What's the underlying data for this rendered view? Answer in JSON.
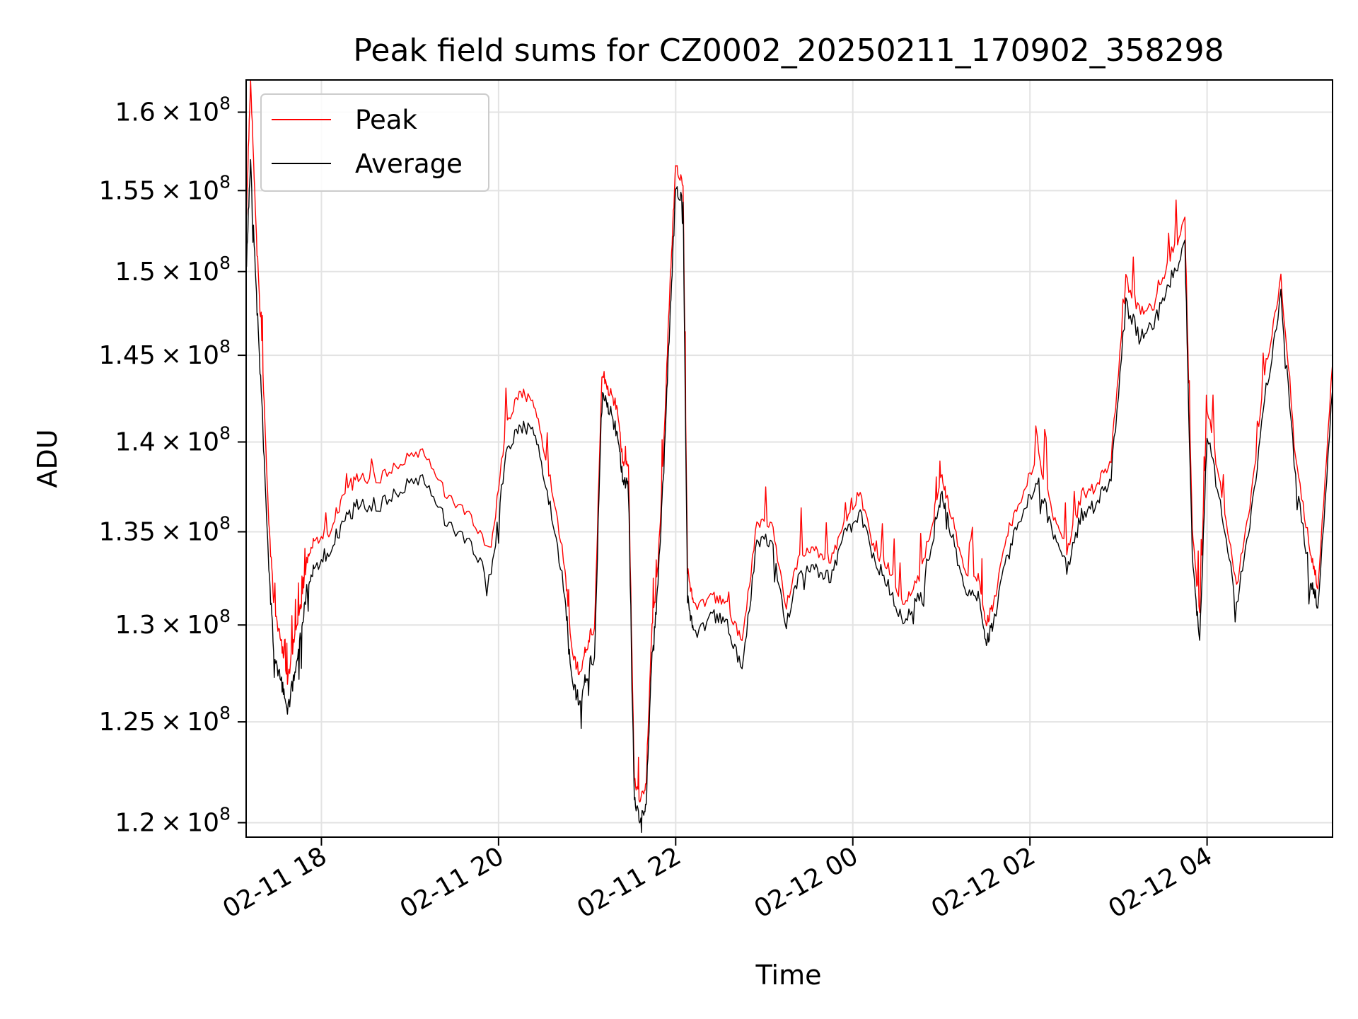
{
  "chart_data": {
    "type": "line",
    "title": "Peak field sums for CZ0002_20250211_170902_358298",
    "xlabel": "Time",
    "ylabel": "ADU",
    "yscale": "log",
    "xlim": [
      "2025-02-11 17:09",
      "2025-02-12 05:25"
    ],
    "ylim": [
      119300000,
      162100000
    ],
    "grid": true,
    "legend_position": "top-left",
    "x_ticks": [
      {
        "value": "2025-02-11 18:00",
        "label": "02-11 18"
      },
      {
        "value": "2025-02-11 20:00",
        "label": "02-11 20"
      },
      {
        "value": "2025-02-11 22:00",
        "label": "02-11 22"
      },
      {
        "value": "2025-02-12 00:00",
        "label": "02-12 00"
      },
      {
        "value": "2025-02-12 02:00",
        "label": "02-12 02"
      },
      {
        "value": "2025-02-12 04:00",
        "label": "02-12 04"
      }
    ],
    "y_ticks": [
      {
        "value": 120000000,
        "mantissa": "1.2",
        "exponent": "8"
      },
      {
        "value": 125000000,
        "mantissa": "1.25",
        "exponent": "8"
      },
      {
        "value": 130000000,
        "mantissa": "1.3",
        "exponent": "8"
      },
      {
        "value": 135000000,
        "mantissa": "1.35",
        "exponent": "8"
      },
      {
        "value": 140000000,
        "mantissa": "1.4",
        "exponent": "8"
      },
      {
        "value": 145000000,
        "mantissa": "1.45",
        "exponent": "8"
      },
      {
        "value": 150000000,
        "mantissa": "1.5",
        "exponent": "8"
      },
      {
        "value": 155000000,
        "mantissa": "1.55",
        "exponent": "8"
      },
      {
        "value": 160000000,
        "mantissa": "1.6",
        "exponent": "8"
      }
    ],
    "series": [
      {
        "name": "Peak",
        "color": "#ff0000",
        "role": "upper"
      },
      {
        "name": "Average",
        "color": "#000000",
        "role": "lower"
      }
    ],
    "x": [
      "2025-02-11 17:09",
      "2025-02-11 17:12",
      "2025-02-11 17:16",
      "2025-02-11 17:20",
      "2025-02-11 17:24",
      "2025-02-11 17:28",
      "2025-02-11 17:33",
      "2025-02-11 17:37",
      "2025-02-11 17:42",
      "2025-02-11 17:46",
      "2025-02-11 17:50",
      "2025-02-11 17:55",
      "2025-02-11 18:05",
      "2025-02-11 18:15",
      "2025-02-11 18:25",
      "2025-02-11 18:40",
      "2025-02-11 18:55",
      "2025-02-11 19:10",
      "2025-02-11 19:25",
      "2025-02-11 19:40",
      "2025-02-11 19:55",
      "2025-02-11 20:05",
      "2025-02-11 20:15",
      "2025-02-11 20:25",
      "2025-02-11 20:35",
      "2025-02-11 20:45",
      "2025-02-11 20:50",
      "2025-02-11 20:55",
      "2025-02-11 21:00",
      "2025-02-11 21:05",
      "2025-02-11 21:10",
      "2025-02-11 21:15",
      "2025-02-11 21:20",
      "2025-02-11 21:24",
      "2025-02-11 21:28",
      "2025-02-11 21:32",
      "2025-02-11 21:36",
      "2025-02-11 21:40",
      "2025-02-11 21:44",
      "2025-02-11 21:48",
      "2025-02-11 21:52",
      "2025-02-11 21:56",
      "2025-02-11 22:00",
      "2025-02-11 22:05",
      "2025-02-11 22:08",
      "2025-02-11 22:12",
      "2025-02-11 22:25",
      "2025-02-11 22:35",
      "2025-02-11 22:45",
      "2025-02-11 22:55",
      "2025-02-11 23:05",
      "2025-02-11 23:15",
      "2025-02-11 23:25",
      "2025-02-11 23:35",
      "2025-02-11 23:45",
      "2025-02-11 23:55",
      "2025-02-12 00:05",
      "2025-02-12 00:15",
      "2025-02-12 00:25",
      "2025-02-12 00:35",
      "2025-02-12 00:45",
      "2025-02-12 00:55",
      "2025-02-12 01:00",
      "2025-02-12 01:05",
      "2025-02-12 01:15",
      "2025-02-12 01:25",
      "2025-02-12 01:30",
      "2025-02-12 01:35",
      "2025-02-12 01:45",
      "2025-02-12 01:55",
      "2025-02-12 02:05",
      "2025-02-12 02:15",
      "2025-02-12 02:25",
      "2025-02-12 02:35",
      "2025-02-12 02:45",
      "2025-02-12 02:55",
      "2025-02-12 03:05",
      "2025-02-12 03:15",
      "2025-02-12 03:25",
      "2025-02-12 03:35",
      "2025-02-12 03:45",
      "2025-02-12 03:50",
      "2025-02-12 03:55",
      "2025-02-12 04:00",
      "2025-02-12 04:10",
      "2025-02-12 04:20",
      "2025-02-12 04:30",
      "2025-02-12 04:40",
      "2025-02-12 04:50",
      "2025-02-12 05:00",
      "2025-02-12 05:10",
      "2025-02-12 05:15",
      "2025-02-12 05:25"
    ],
    "peak": [
      153000000,
      162100000,
      152000000,
      145000000,
      136000000,
      131000000,
      129000000,
      127000000,
      129500000,
      131000000,
      133500000,
      134500000,
      135000000,
      137000000,
      138000000,
      138000000,
      139000000,
      139500000,
      137000000,
      136000000,
      134000000,
      141000000,
      143000000,
      142000000,
      138000000,
      133000000,
      128500000,
      127500000,
      129000000,
      130000000,
      143500000,
      143000000,
      142000000,
      139000000,
      138500000,
      122000000,
      121000000,
      122000000,
      130000000,
      133000000,
      140000000,
      149000000,
      156500000,
      155500000,
      133000000,
      131000000,
      131500000,
      131000000,
      129000000,
      135500000,
      135500000,
      131000000,
      134000000,
      134000000,
      133500000,
      135500000,
      137000000,
      134000000,
      133000000,
      131000000,
      132500000,
      136000000,
      138000000,
      136500000,
      133000000,
      132500000,
      130000000,
      131000000,
      135000000,
      137000000,
      139500000,
      136000000,
      134000000,
      137000000,
      137500000,
      139000000,
      149500000,
      147500000,
      148000000,
      151000000,
      153000000,
      135000000,
      130500000,
      142000000,
      137000000,
      132000000,
      137000000,
      144500000,
      149500000,
      139000000,
      134000000,
      132000000,
      144500000
    ],
    "average": [
      150000000,
      157000000,
      148500000,
      141500000,
      133500000,
      128500000,
      127000000,
      125500000,
      127500000,
      129500000,
      132000000,
      133000000,
      134000000,
      135500000,
      136500000,
      136500000,
      137500000,
      138000000,
      135500000,
      134500000,
      132500000,
      139500000,
      141000000,
      140500000,
      136500000,
      131500000,
      127000000,
      126000000,
      127500000,
      128500000,
      142500000,
      142000000,
      140500000,
      138000000,
      137500000,
      121000000,
      120000000,
      121000000,
      128500000,
      132000000,
      139000000,
      147000000,
      155000000,
      154500000,
      131500000,
      129500000,
      130500000,
      130000000,
      127500000,
      134500000,
      134500000,
      130000000,
      133000000,
      133000000,
      132500000,
      135000000,
      136000000,
      133500000,
      132000000,
      130000000,
      131500000,
      135000000,
      137000000,
      135500000,
      132000000,
      131500000,
      129000000,
      130000000,
      134000000,
      136000000,
      138000000,
      135000000,
      133000000,
      136000000,
      136500000,
      138000000,
      148000000,
      146000000,
      147000000,
      149500000,
      151500000,
      133500000,
      129000000,
      140500000,
      136000000,
      131000000,
      136000000,
      143000000,
      148500000,
      138000000,
      132500000,
      131000000,
      143000000
    ]
  }
}
